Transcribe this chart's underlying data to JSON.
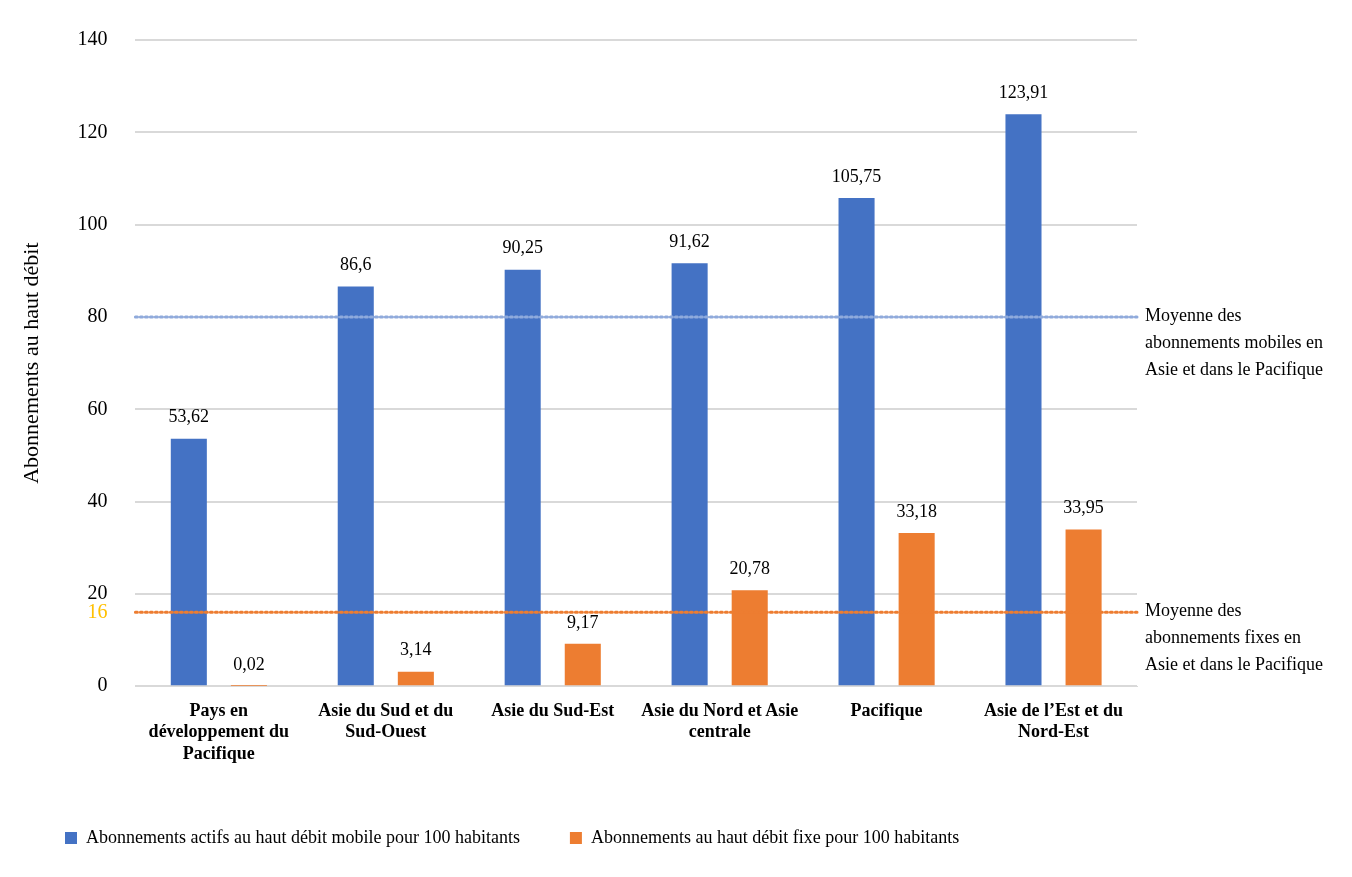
{
  "chart_data": {
    "type": "bar",
    "ylabel": "Abonnements au haut débit",
    "categories": [
      "Pays en développement du Pacifique",
      "Asie du Sud et du Sud-Ouest",
      "Asie du Sud-Est",
      "Asie du Nord et Asie centrale",
      "Pacifique",
      "Asie de l’Est et du Nord-Est"
    ],
    "series": [
      {
        "name": "Abonnements actifs au haut débit mobile pour 100 habitants",
        "color": "#4472c4",
        "values": [
          53.62,
          86.6,
          90.25,
          91.62,
          105.75,
          123.91
        ]
      },
      {
        "name": "Abonnements au haut débit fixe pour 100 habitants",
        "color": "#ed7d31",
        "values": [
          0.02,
          3.14,
          9.17,
          20.78,
          33.18,
          33.95
        ]
      }
    ],
    "value_labels": [
      [
        "53,62",
        "86,6",
        "90,25",
        "91,62",
        "105,75",
        "123,91"
      ],
      [
        "0,02",
        "3,14",
        "9,17",
        "20,78",
        "33,18",
        "33,95"
      ]
    ],
    "ylim": [
      0,
      140
    ],
    "yticks": [
      0,
      {
        "value": 16,
        "label": "16"
      },
      20,
      40,
      60,
      80,
      100,
      120,
      140
    ],
    "ref_lines": [
      {
        "axis": "y",
        "value": 80,
        "label": "Moyenne des abonnements mobiles en Asie et dans le Pacifique",
        "color": "#8faadc",
        "line_style": "dotted"
      },
      {
        "axis": "y",
        "value": 16,
        "label": "Moyenne des abonnements fixes en Asie et dans le Pacifique",
        "color": "#ed7d31",
        "line_style": "dotted"
      }
    ],
    "grid": "y",
    "legend": "bottom"
  }
}
